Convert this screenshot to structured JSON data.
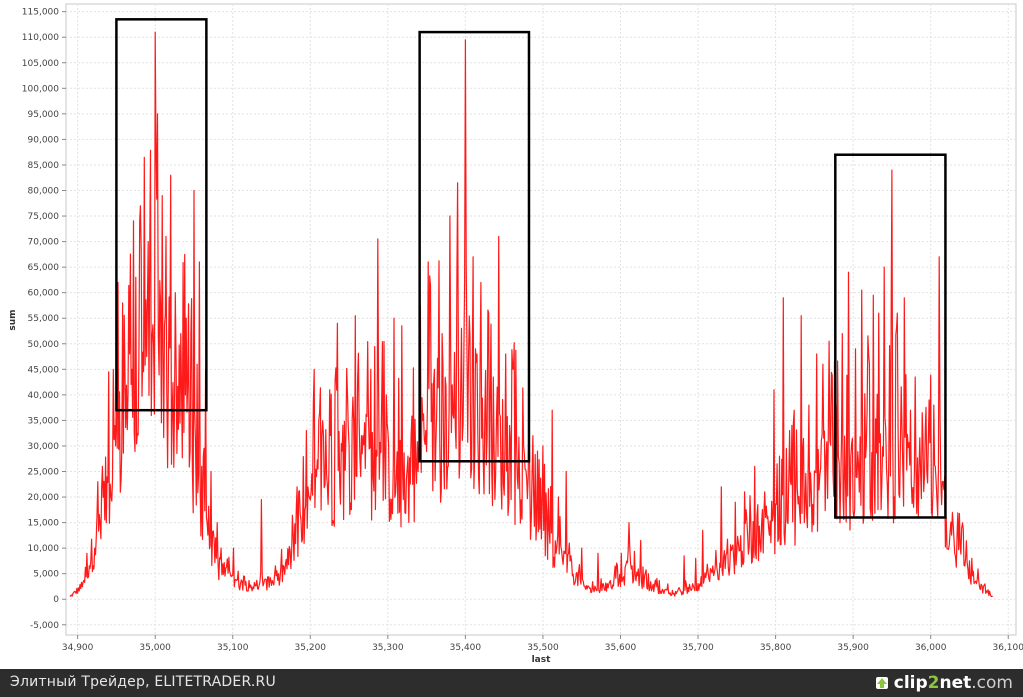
{
  "footer": {
    "caption": "Элитный Трейдер, ELITETRADER.RU",
    "logo_icon": "arrow-up-icon",
    "logo_part1": "clip",
    "logo_part2": "2",
    "logo_part3": "net",
    "logo_part4": ".com",
    "logo_color": "#8cc63f"
  },
  "chart_data": {
    "type": "line",
    "xlabel": "last",
    "ylabel": "sum",
    "xlim": [
      34885,
      36110
    ],
    "ylim": [
      -7000,
      116500
    ],
    "x_ticks": [
      34900,
      35000,
      35100,
      35200,
      35300,
      35400,
      35500,
      35600,
      35700,
      35800,
      35900,
      36000,
      36100
    ],
    "x_tick_labels": [
      "34,900",
      "35,000",
      "35,100",
      "35,200",
      "35,300",
      "35,400",
      "35,500",
      "35,600",
      "35,700",
      "35,800",
      "35,900",
      "36,000",
      "36,100"
    ],
    "y_ticks": [
      -5000,
      0,
      5000,
      10000,
      15000,
      20000,
      25000,
      30000,
      35000,
      40000,
      45000,
      50000,
      55000,
      60000,
      65000,
      70000,
      75000,
      80000,
      85000,
      90000,
      95000,
      100000,
      105000,
      110000,
      115000
    ],
    "y_tick_labels": [
      "-5,000",
      "0",
      "5,000",
      "10,000",
      "15,000",
      "20,000",
      "25,000",
      "30,000",
      "35,000",
      "40,000",
      "45,000",
      "50,000",
      "55,000",
      "60,000",
      "65,000",
      "70,000",
      "75,000",
      "80,000",
      "85,000",
      "90,000",
      "95,000",
      "100,000",
      "105,000",
      "110,000",
      "115,000"
    ],
    "grid": true,
    "line_color": "#ff1a1a",
    "box_color": "#000000",
    "envelope": [
      [
        34890,
        500
      ],
      [
        34905,
        2500
      ],
      [
        34920,
        10000
      ],
      [
        34935,
        20000
      ],
      [
        34950,
        30000
      ],
      [
        34970,
        38000
      ],
      [
        34990,
        46000
      ],
      [
        35010,
        45000
      ],
      [
        35030,
        38000
      ],
      [
        35050,
        28000
      ],
      [
        35065,
        15000
      ],
      [
        35080,
        7000
      ],
      [
        35100,
        3500
      ],
      [
        35130,
        2500
      ],
      [
        35160,
        4000
      ],
      [
        35185,
        12000
      ],
      [
        35210,
        22000
      ],
      [
        35240,
        27000
      ],
      [
        35270,
        28000
      ],
      [
        35300,
        26000
      ],
      [
        35320,
        23000
      ],
      [
        35350,
        32000
      ],
      [
        35380,
        36000
      ],
      [
        35400,
        40000
      ],
      [
        35420,
        36000
      ],
      [
        35450,
        30000
      ],
      [
        35480,
        20000
      ],
      [
        35510,
        12000
      ],
      [
        35540,
        5000
      ],
      [
        35560,
        1800
      ],
      [
        35585,
        2500
      ],
      [
        35610,
        5500
      ],
      [
        35640,
        2500
      ],
      [
        35670,
        800
      ],
      [
        35700,
        3000
      ],
      [
        35730,
        6000
      ],
      [
        35760,
        11000
      ],
      [
        35800,
        16000
      ],
      [
        35840,
        20000
      ],
      [
        35870,
        25000
      ],
      [
        35900,
        24000
      ],
      [
        35930,
        27000
      ],
      [
        35960,
        27000
      ],
      [
        35990,
        26000
      ],
      [
        36010,
        20000
      ],
      [
        36030,
        11000
      ],
      [
        36050,
        5000
      ],
      [
        36070,
        1500
      ],
      [
        36080,
        500
      ]
    ],
    "spikes": [
      [
        34912,
        9000
      ],
      [
        34922,
        10000
      ],
      [
        34932,
        26000
      ],
      [
        34940,
        44500
      ],
      [
        34946,
        45000
      ],
      [
        34952,
        62000
      ],
      [
        34958,
        58000
      ],
      [
        34965,
        40000
      ],
      [
        34970,
        45000
      ],
      [
        34975,
        63000
      ],
      [
        34980,
        74000
      ],
      [
        34986,
        86500
      ],
      [
        34991,
        70000
      ],
      [
        35000,
        111000
      ],
      [
        35003,
        95000
      ],
      [
        35009,
        79000
      ],
      [
        35014,
        71000
      ],
      [
        35020,
        83000
      ],
      [
        35026,
        60000
      ],
      [
        35033,
        52000
      ],
      [
        35040,
        55000
      ],
      [
        35050,
        80000
      ],
      [
        35057,
        66000
      ],
      [
        35065,
        45000
      ],
      [
        35072,
        25000
      ],
      [
        35080,
        15000
      ],
      [
        35101,
        10000
      ],
      [
        35137,
        19500
      ],
      [
        35168,
        7000
      ],
      [
        35183,
        22000
      ],
      [
        35195,
        33000
      ],
      [
        35205,
        45000
      ],
      [
        35215,
        32000
      ],
      [
        35225,
        41000
      ],
      [
        35235,
        54000
      ],
      [
        35248,
        40000
      ],
      [
        35258,
        55500
      ],
      [
        35268,
        32000
      ],
      [
        35278,
        45000
      ],
      [
        35287,
        70500
      ],
      [
        35298,
        40000
      ],
      [
        35308,
        55000
      ],
      [
        35318,
        53500
      ],
      [
        35330,
        32000
      ],
      [
        35339,
        25000
      ],
      [
        35345,
        35000
      ],
      [
        35352,
        66000
      ],
      [
        35360,
        45000
      ],
      [
        35370,
        52000
      ],
      [
        35380,
        75000
      ],
      [
        35390,
        81500
      ],
      [
        35395,
        53000
      ],
      [
        35400,
        109500
      ],
      [
        35410,
        67000
      ],
      [
        35420,
        62000
      ],
      [
        35430,
        56000
      ],
      [
        35443,
        71000
      ],
      [
        35452,
        48000
      ],
      [
        35462,
        45000
      ],
      [
        35475,
        30000
      ],
      [
        35487,
        32000
      ],
      [
        35500,
        30000
      ],
      [
        35512,
        37000
      ],
      [
        35520,
        20000
      ],
      [
        35530,
        25000
      ],
      [
        35550,
        10000
      ],
      [
        35571,
        9000
      ],
      [
        35601,
        9000
      ],
      [
        35611,
        15000
      ],
      [
        35626,
        11500
      ],
      [
        35661,
        3000
      ],
      [
        35682,
        8500
      ],
      [
        35697,
        8000
      ],
      [
        35706,
        13500
      ],
      [
        35719,
        6500
      ],
      [
        35730,
        22000
      ],
      [
        35748,
        19000
      ],
      [
        35760,
        21000
      ],
      [
        35773,
        26000
      ],
      [
        35786,
        21000
      ],
      [
        35798,
        41000
      ],
      [
        35805,
        28000
      ],
      [
        35810,
        59000
      ],
      [
        35818,
        33000
      ],
      [
        35824,
        37000
      ],
      [
        35833,
        55500
      ],
      [
        35843,
        38000
      ],
      [
        35853,
        48000
      ],
      [
        35861,
        46000
      ],
      [
        35869,
        50500
      ],
      [
        35878,
        38000
      ],
      [
        35886,
        52000
      ],
      [
        35894,
        64000
      ],
      [
        35903,
        49000
      ],
      [
        35911,
        60500
      ],
      [
        35918,
        37000
      ],
      [
        35926,
        59500
      ],
      [
        35933,
        56000
      ],
      [
        35940,
        65000
      ],
      [
        35950,
        84000
      ],
      [
        35957,
        56000
      ],
      [
        35966,
        59000
      ],
      [
        35974,
        37000
      ],
      [
        35980,
        43500
      ],
      [
        35989,
        36500
      ],
      [
        35998,
        39000
      ],
      [
        36004,
        38000
      ],
      [
        36011,
        67000
      ],
      [
        36018,
        24000
      ],
      [
        36028,
        17000
      ],
      [
        36040,
        14000
      ],
      [
        36053,
        8000
      ],
      [
        36070,
        3000
      ]
    ],
    "boxes": [
      {
        "x0": 34950,
        "x1": 35066,
        "y0": 37000,
        "y1": 113500
      },
      {
        "x0": 35341,
        "x1": 35482,
        "y0": 27000,
        "y1": 111000
      },
      {
        "x0": 35877,
        "x1": 36019,
        "y0": 16000,
        "y1": 87000
      }
    ]
  }
}
